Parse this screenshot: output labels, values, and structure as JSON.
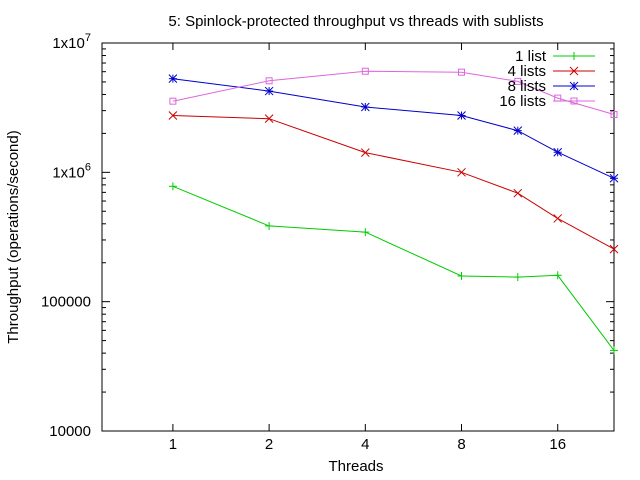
{
  "chart_data": {
    "type": "line",
    "title": "5: Spinlock-protected throughput vs threads with sublists",
    "xlabel": "Threads",
    "ylabel": "Throughput (operations/second)",
    "xscale": "log2",
    "yscale": "log10",
    "xlim": [
      0.6,
      24
    ],
    "ylim": [
      10000,
      10000000
    ],
    "x_ticks": [
      {
        "value": 1,
        "label": "1"
      },
      {
        "value": 2,
        "label": "2"
      },
      {
        "value": 4,
        "label": "4"
      },
      {
        "value": 8,
        "label": "8"
      },
      {
        "value": 16,
        "label": "16"
      }
    ],
    "y_ticks": [
      {
        "value": 10000,
        "label": "10000"
      },
      {
        "value": 100000,
        "label": "100000"
      },
      {
        "value": 1000000,
        "label": "1x10",
        "sup": "6"
      },
      {
        "value": 10000000,
        "label": "1x10",
        "sup": "7"
      }
    ],
    "grid": false,
    "legend_position": "top-right",
    "x": [
      1,
      2,
      4,
      8,
      12,
      16,
      24
    ],
    "series": [
      {
        "name": "1 list",
        "color": "#00cc00",
        "marker": "plus",
        "values": [
          780000,
          385000,
          345000,
          158000,
          155000,
          160000,
          42000
        ]
      },
      {
        "name": "4 lists",
        "color": "#cc0000",
        "marker": "cross",
        "values": [
          2750000,
          2600000,
          1420000,
          1000000,
          690000,
          440000,
          255000
        ]
      },
      {
        "name": "8 lists",
        "color": "#0000cc",
        "marker": "star",
        "values": [
          5300000,
          4250000,
          3200000,
          2750000,
          2100000,
          1430000,
          900000
        ]
      },
      {
        "name": "16 lists",
        "color": "#dd66dd",
        "marker": "square",
        "values": [
          3550000,
          5100000,
          6050000,
          5950000,
          5050000,
          3750000,
          2800000
        ]
      }
    ]
  }
}
